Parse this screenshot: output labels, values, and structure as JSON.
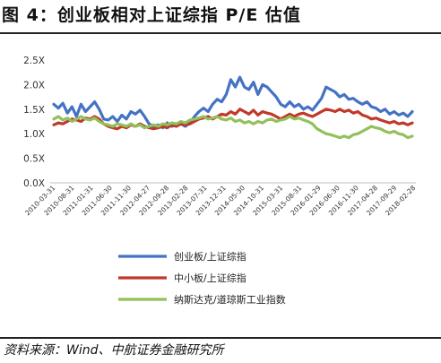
{
  "title": "图 4：创业板相对上证综指 P/E 估值",
  "source": "资料来源：Wind、中航证券金融研究所",
  "chart_data": {
    "type": "line",
    "y_ticks": [
      "0.0X",
      "0.5X",
      "1.0X",
      "1.5X",
      "2.0X",
      "2.5X"
    ],
    "ylim": [
      0,
      2.5
    ],
    "grid": false,
    "legend_placement": "bottom",
    "x_ticks": [
      "2010-03-31",
      "2010-08-31",
      "2011-01-31",
      "2011-06-30",
      "2011-11-30",
      "2012-04-27",
      "2012-09-28",
      "2013-02-28",
      "2013-07-31",
      "2013-12-31",
      "2014-05-30",
      "2014-10-31",
      "2015-03-31",
      "2015-08-31",
      "2016-01-29",
      "2016-06-30",
      "2016-11-30",
      "2017-04-28",
      "2017-09-29",
      "2018-02-28"
    ],
    "series": [
      {
        "name": "创业板/上证综指",
        "color": "#4472C4",
        "values": [
          1.6,
          1.52,
          1.62,
          1.42,
          1.55,
          1.35,
          1.6,
          1.45,
          1.55,
          1.65,
          1.5,
          1.3,
          1.28,
          1.35,
          1.25,
          1.38,
          1.3,
          1.45,
          1.4,
          1.48,
          1.35,
          1.2,
          1.15,
          1.18,
          1.12,
          1.22,
          1.15,
          1.18,
          1.2,
          1.15,
          1.22,
          1.35,
          1.45,
          1.52,
          1.45,
          1.6,
          1.7,
          1.65,
          1.8,
          2.1,
          1.95,
          2.15,
          1.95,
          1.9,
          2.05,
          1.8,
          2.0,
          1.95,
          1.85,
          1.75,
          1.6,
          1.55,
          1.65,
          1.55,
          1.6,
          1.5,
          1.55,
          1.48,
          1.6,
          1.72,
          1.95,
          1.9,
          1.85,
          1.75,
          1.8,
          1.7,
          1.72,
          1.65,
          1.6,
          1.65,
          1.55,
          1.52,
          1.45,
          1.5,
          1.4,
          1.45,
          1.38,
          1.42,
          1.35,
          1.45
        ]
      },
      {
        "name": "中小板/上证综指",
        "color": "#C0392B",
        "values": [
          1.18,
          1.22,
          1.2,
          1.25,
          1.3,
          1.28,
          1.25,
          1.32,
          1.3,
          1.35,
          1.3,
          1.2,
          1.15,
          1.12,
          1.1,
          1.15,
          1.12,
          1.18,
          1.15,
          1.2,
          1.15,
          1.12,
          1.1,
          1.12,
          1.15,
          1.12,
          1.18,
          1.15,
          1.2,
          1.18,
          1.2,
          1.25,
          1.3,
          1.32,
          1.35,
          1.3,
          1.35,
          1.4,
          1.38,
          1.45,
          1.4,
          1.5,
          1.45,
          1.4,
          1.48,
          1.38,
          1.45,
          1.42,
          1.4,
          1.35,
          1.3,
          1.35,
          1.4,
          1.35,
          1.4,
          1.42,
          1.38,
          1.35,
          1.4,
          1.45,
          1.5,
          1.48,
          1.45,
          1.5,
          1.45,
          1.48,
          1.42,
          1.45,
          1.38,
          1.35,
          1.3,
          1.32,
          1.28,
          1.25,
          1.22,
          1.25,
          1.2,
          1.22,
          1.18,
          1.22
        ]
      },
      {
        "name": "纳斯达克/道琼斯工业指数",
        "color": "#92C05A",
        "values": [
          1.3,
          1.35,
          1.28,
          1.32,
          1.25,
          1.3,
          1.35,
          1.3,
          1.28,
          1.32,
          1.25,
          1.2,
          1.18,
          1.15,
          1.2,
          1.18,
          1.15,
          1.2,
          1.15,
          1.18,
          1.12,
          1.15,
          1.18,
          1.15,
          1.2,
          1.18,
          1.22,
          1.2,
          1.25,
          1.22,
          1.28,
          1.3,
          1.32,
          1.35,
          1.3,
          1.32,
          1.35,
          1.3,
          1.28,
          1.32,
          1.25,
          1.28,
          1.22,
          1.25,
          1.2,
          1.25,
          1.22,
          1.28,
          1.3,
          1.25,
          1.28,
          1.3,
          1.35,
          1.3,
          1.32,
          1.28,
          1.25,
          1.2,
          1.1,
          1.05,
          1.0,
          0.98,
          0.95,
          0.92,
          0.95,
          0.92,
          0.98,
          1.0,
          1.05,
          1.1,
          1.15,
          1.12,
          1.1,
          1.05,
          1.02,
          1.05,
          1.0,
          0.98,
          0.92,
          0.95
        ]
      }
    ]
  }
}
